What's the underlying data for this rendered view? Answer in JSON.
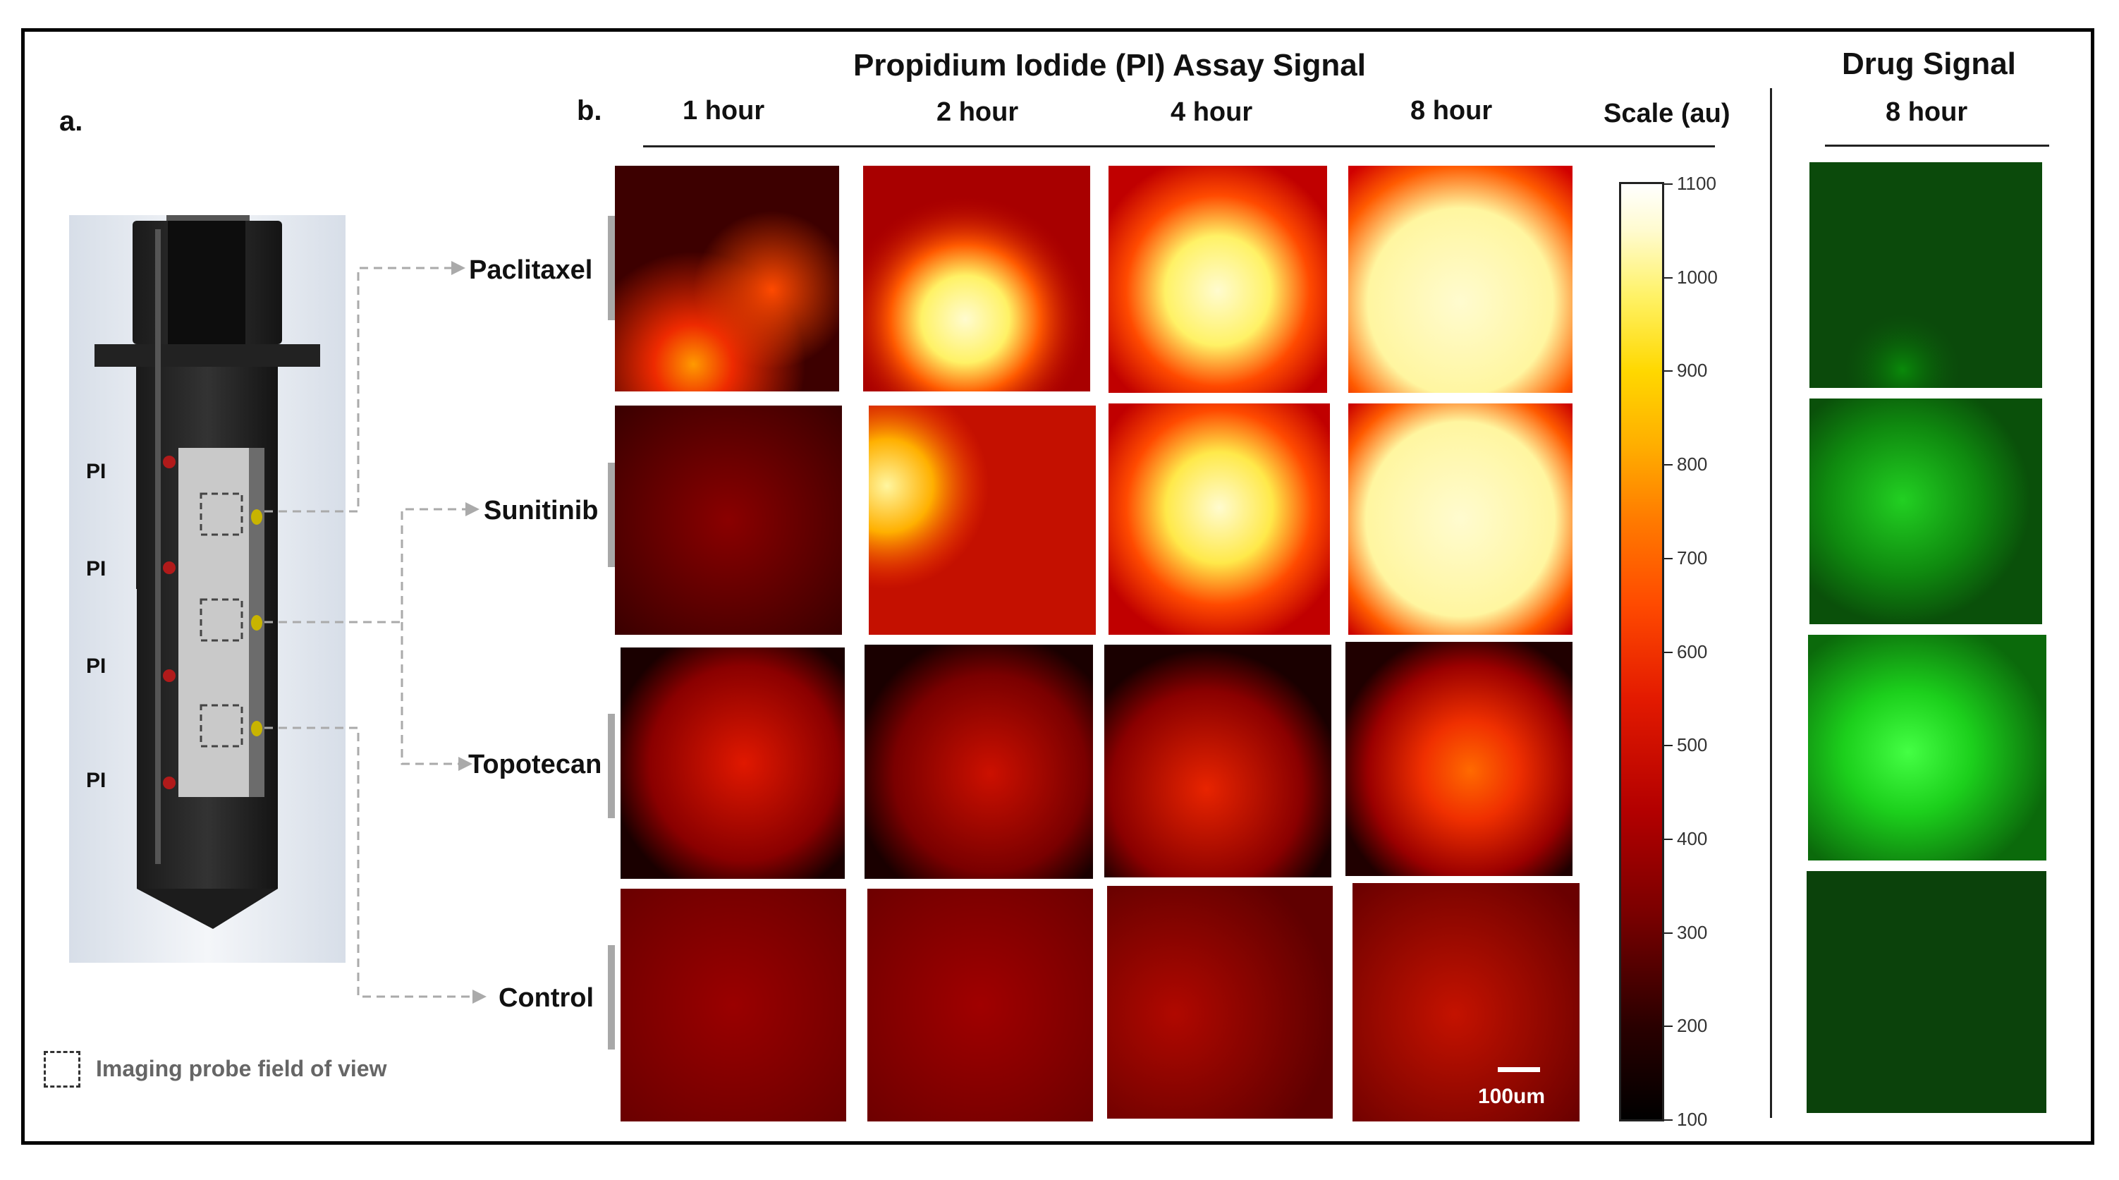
{
  "panel_a": {
    "label": "a.",
    "pi_labels": [
      "PI",
      "PI",
      "PI",
      "PI"
    ],
    "legend_text": "Imaging probe field of view"
  },
  "panel_b": {
    "label": "b.",
    "title": "Propidium Iodide (PI) Assay Signal",
    "columns": [
      "1 hour",
      "2 hour",
      "4 hour",
      "8 hour"
    ],
    "scale_header": "Scale (au)",
    "rows": [
      "Paclitaxel",
      "Sunitinib",
      "Topotecan",
      "Control"
    ],
    "scale_bar_text": "100um",
    "colorbar_ticks": [
      "1100",
      "1000",
      "900",
      "800",
      "700",
      "600",
      "500",
      "400",
      "300",
      "200",
      "100"
    ]
  },
  "drug_panel": {
    "title": "Drug Signal",
    "column": "8 hour"
  },
  "colors": {
    "heat_base": "#7a0000",
    "drug_green": "#00c000"
  }
}
